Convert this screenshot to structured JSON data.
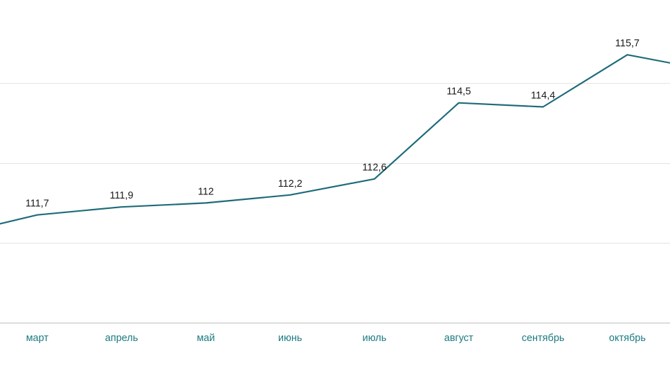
{
  "colors": {
    "line": "#1e6b7a",
    "tick_text": "#1b7a80",
    "data_label_text": "#1a1a1a"
  },
  "chart_data": {
    "type": "line",
    "categories": [
      "",
      "март",
      "апрель",
      "май",
      "июнь",
      "июль",
      "август",
      "сентябрь",
      "октябрь",
      ""
    ],
    "series": [
      {
        "values": [
          111.2,
          111.7,
          111.9,
          112,
          112.2,
          112.6,
          114.5,
          114.4,
          115.7,
          115.3
        ],
        "labels": [
          "",
          "111,7",
          "111,9",
          "112",
          "112,2",
          "112,6",
          "114,5",
          "114,4",
          "115,7",
          ""
        ]
      }
    ],
    "ylim": [
      109,
      117
    ],
    "grid": true,
    "legend": "none"
  }
}
